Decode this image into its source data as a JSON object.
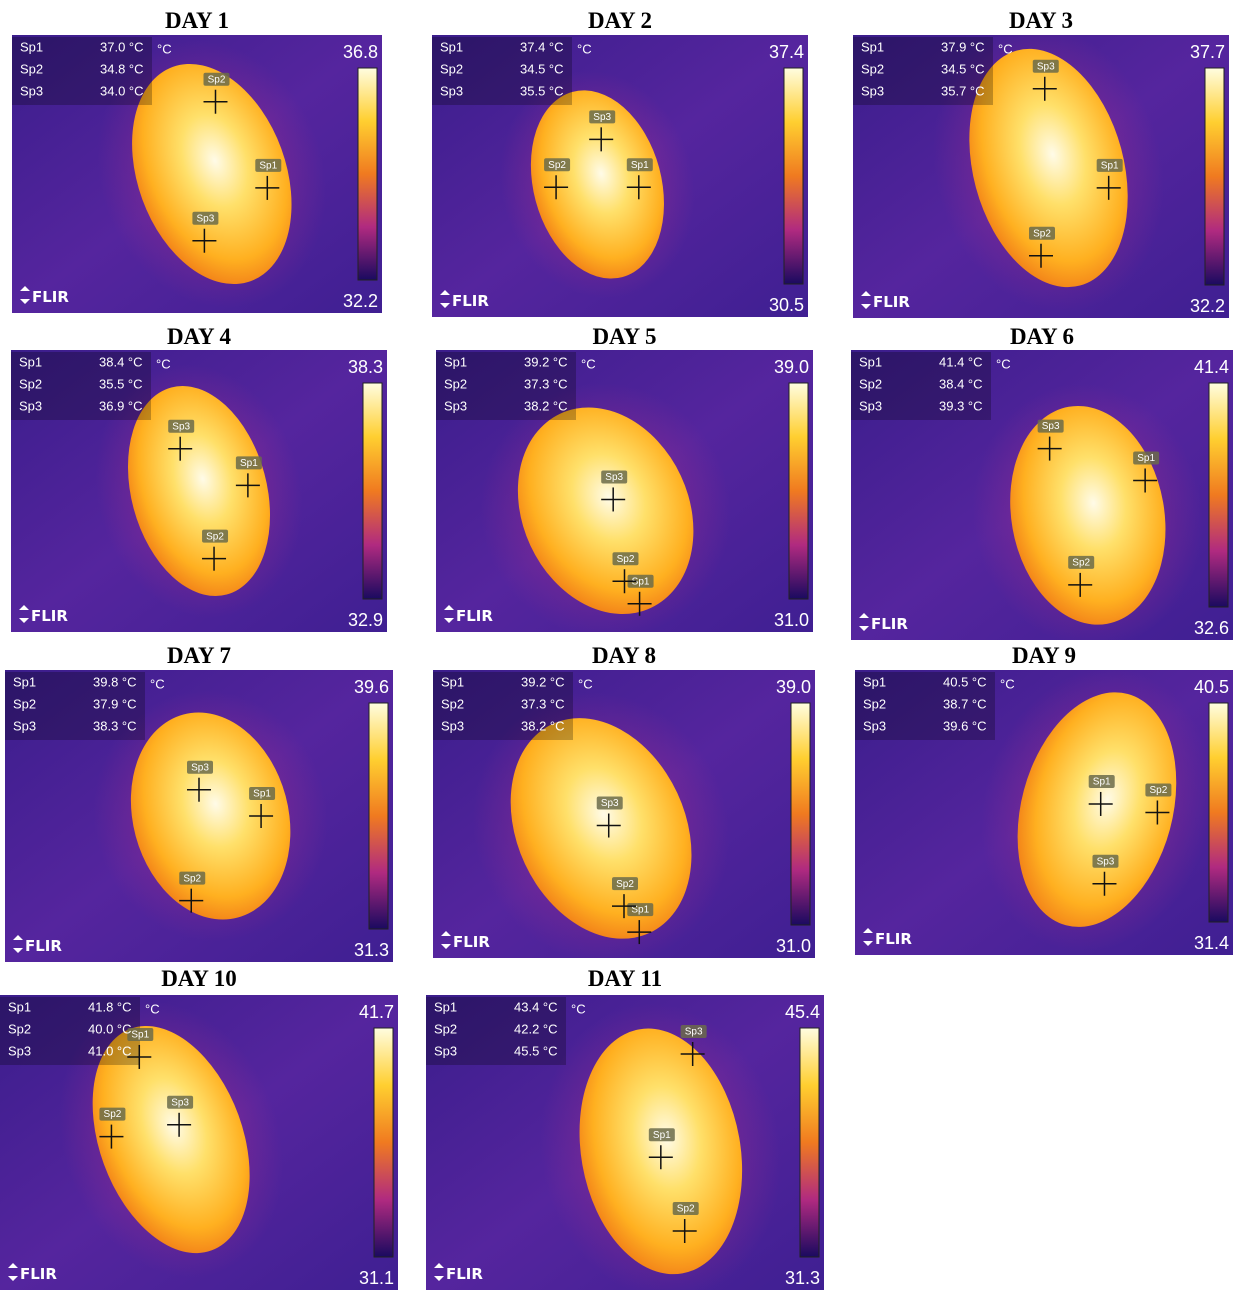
{
  "unit": "°C",
  "logo": "FLIR",
  "panels": [
    {
      "title": "DAY 1",
      "scale_max": "36.8",
      "scale_min": "32.2",
      "spots": [
        {
          "name": "Sp1",
          "temp": "37.0 °C"
        },
        {
          "name": "Sp2",
          "temp": "34.8 °C"
        },
        {
          "name": "Sp3",
          "temp": "34.0 °C"
        }
      ]
    },
    {
      "title": "DAY 2",
      "scale_max": "37.4",
      "scale_min": "30.5",
      "spots": [
        {
          "name": "Sp1",
          "temp": "37.4 °C"
        },
        {
          "name": "Sp2",
          "temp": "34.5 °C"
        },
        {
          "name": "Sp3",
          "temp": "35.5 °C"
        }
      ]
    },
    {
      "title": "DAY 3",
      "scale_max": "37.7",
      "scale_min": "32.2",
      "spots": [
        {
          "name": "Sp1",
          "temp": "37.9 °C"
        },
        {
          "name": "Sp2",
          "temp": "34.5 °C"
        },
        {
          "name": "Sp3",
          "temp": "35.7 °C"
        }
      ]
    },
    {
      "title": "DAY 4",
      "scale_max": "38.3",
      "scale_min": "32.9",
      "spots": [
        {
          "name": "Sp1",
          "temp": "38.4 °C"
        },
        {
          "name": "Sp2",
          "temp": "35.5 °C"
        },
        {
          "name": "Sp3",
          "temp": "36.9 °C"
        }
      ]
    },
    {
      "title": "DAY 5",
      "scale_max": "39.0",
      "scale_min": "31.0",
      "spots": [
        {
          "name": "Sp1",
          "temp": "39.2 °C"
        },
        {
          "name": "Sp2",
          "temp": "37.3 °C"
        },
        {
          "name": "Sp3",
          "temp": "38.2 °C"
        }
      ]
    },
    {
      "title": "DAY 6",
      "scale_max": "41.4",
      "scale_min": "32.6",
      "spots": [
        {
          "name": "Sp1",
          "temp": "41.4 °C"
        },
        {
          "name": "Sp2",
          "temp": "38.4 °C"
        },
        {
          "name": "Sp3",
          "temp": "39.3 °C"
        }
      ]
    },
    {
      "title": "DAY 7",
      "scale_max": "39.6",
      "scale_min": "31.3",
      "spots": [
        {
          "name": "Sp1",
          "temp": "39.8 °C"
        },
        {
          "name": "Sp2",
          "temp": "37.9 °C"
        },
        {
          "name": "Sp3",
          "temp": "38.3 °C"
        }
      ]
    },
    {
      "title": "DAY 8",
      "scale_max": "39.0",
      "scale_min": "31.0",
      "spots": [
        {
          "name": "Sp1",
          "temp": "39.2 °C"
        },
        {
          "name": "Sp2",
          "temp": "37.3 °C"
        },
        {
          "name": "Sp3",
          "temp": "38.2 °C"
        }
      ]
    },
    {
      "title": "DAY 9",
      "scale_max": "40.5",
      "scale_min": "31.4",
      "spots": [
        {
          "name": "Sp1",
          "temp": "40.5 °C"
        },
        {
          "name": "Sp2",
          "temp": "38.7 °C"
        },
        {
          "name": "Sp3",
          "temp": "39.6 °C"
        }
      ]
    },
    {
      "title": "DAY 10",
      "scale_max": "41.7",
      "scale_min": "31.1",
      "spots": [
        {
          "name": "Sp1",
          "temp": "41.8 °C"
        },
        {
          "name": "Sp2",
          "temp": "40.0 °C"
        },
        {
          "name": "Sp3",
          "temp": "41.0 °C"
        }
      ]
    },
    {
      "title": "DAY 11",
      "scale_max": "45.4",
      "scale_min": "31.3",
      "spots": [
        {
          "name": "Sp1",
          "temp": "43.4 °C"
        },
        {
          "name": "Sp2",
          "temp": "42.2 °C"
        },
        {
          "name": "Sp3",
          "temp": "45.5 °C"
        }
      ]
    }
  ]
}
